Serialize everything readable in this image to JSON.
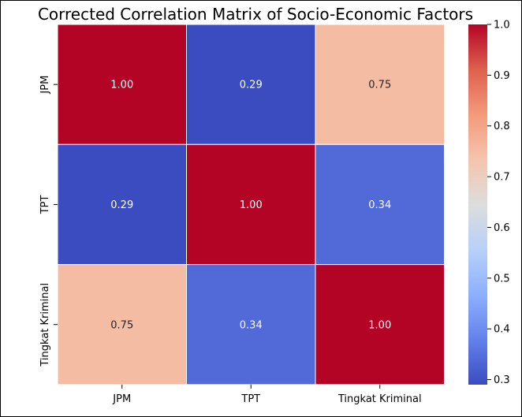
{
  "chart_data": {
    "type": "heatmap",
    "title": "Corrected Correlation Matrix of Socio-Economic Factors",
    "row_labels": [
      "JPM",
      "TPT",
      "Tingkat Kriminal"
    ],
    "col_labels": [
      "JPM",
      "TPT",
      "Tingkat Kriminal"
    ],
    "values": [
      [
        1.0,
        0.29,
        0.75
      ],
      [
        0.29,
        1.0,
        0.34
      ],
      [
        0.75,
        0.34,
        1.0
      ]
    ],
    "value_labels": [
      [
        "1.00",
        "0.29",
        "0.75"
      ],
      [
        "0.29",
        "1.00",
        "0.34"
      ],
      [
        "0.75",
        "0.34",
        "1.00"
      ]
    ],
    "colorbar": {
      "min": 0.29,
      "max": 1.0,
      "ticks": [
        "0.3",
        "0.4",
        "0.5",
        "0.6",
        "0.7",
        "0.8",
        "0.9",
        "1.0"
      ],
      "colormap": "coolwarm"
    },
    "colors": {
      "low": "#3b4cc0",
      "mid": "#dddddd",
      "high": "#b40426"
    }
  }
}
